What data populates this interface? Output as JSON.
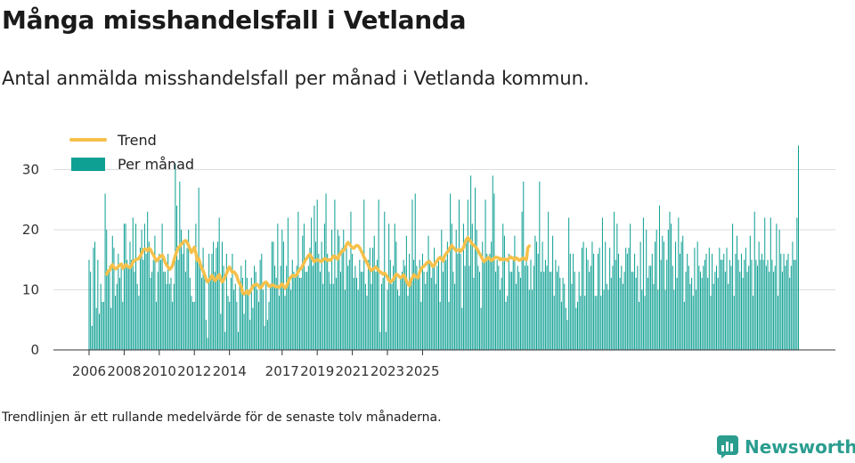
{
  "title": "Många misshandelsfall i Vetlanda",
  "subtitle": "Antal anmälda misshandelsfall per månad i Vetlanda kommun.",
  "footnote": "Trendlinjen är ett rullande medelvärde för de senaste tolv månaderna.",
  "brand": "Newsworthy",
  "colors": {
    "bar": "#0fa094",
    "trend": "#f7c04a",
    "grid": "#dddddd",
    "axis": "#555555",
    "brand": "#2a9d8f"
  },
  "chart_data": {
    "type": "bar",
    "x_start": "2006-01",
    "x_interval": "month",
    "ylim": [
      0,
      35
    ],
    "yticks": [
      0,
      10,
      20,
      30
    ],
    "xticks": [
      "2006",
      "2008",
      "2010",
      "2012",
      "2014",
      "2017",
      "2019",
      "2021",
      "2023",
      "2025"
    ],
    "grid": true,
    "legend_position": "top-left",
    "series": [
      {
        "name": "Per månad",
        "type": "bar",
        "values": [
          15,
          13,
          4,
          17,
          18,
          7,
          15,
          6,
          11,
          8,
          8,
          26,
          20,
          13,
          14,
          7,
          19,
          17,
          9,
          11,
          16,
          12,
          14,
          8,
          21,
          21,
          15,
          14,
          18,
          15,
          22,
          13,
          21,
          11,
          9,
          17,
          20,
          15,
          21,
          16,
          23,
          18,
          12,
          13,
          15,
          19,
          8,
          13,
          16,
          15,
          21,
          13,
          13,
          11,
          16,
          11,
          12,
          8,
          11,
          31,
          24,
          15,
          28,
          20,
          16,
          18,
          13,
          17,
          20,
          12,
          9,
          8,
          8,
          21,
          15,
          27,
          14,
          12,
          17,
          13,
          5,
          2,
          16,
          12,
          16,
          18,
          13,
          17,
          18,
          22,
          6,
          18,
          14,
          3,
          16,
          9,
          8,
          12,
          16,
          10,
          11,
          8,
          3,
          11,
          14,
          12,
          6,
          15,
          12,
          10,
          5,
          12,
          7,
          14,
          13,
          10,
          8,
          15,
          16,
          10,
          4,
          11,
          5,
          8,
          11,
          18,
          18,
          14,
          12,
          21,
          9,
          14,
          20,
          18,
          9,
          14,
          22,
          12,
          10,
          15,
          13,
          12,
          14,
          23,
          12,
          12,
          19,
          21,
          13,
          13,
          14,
          17,
          22,
          14,
          24,
          18,
          25,
          16,
          13,
          18,
          11,
          21,
          26,
          16,
          13,
          11,
          20,
          11,
          25,
          12,
          20,
          19,
          13,
          17,
          20,
          10,
          17,
          14,
          15,
          23,
          16,
          12,
          14,
          12,
          10,
          15,
          13,
          13,
          25,
          11,
          9,
          15,
          17,
          11,
          17,
          19,
          13,
          15,
          25,
          3,
          11,
          12,
          23,
          3,
          10,
          21,
          15,
          11,
          14,
          21,
          18,
          10,
          9,
          12,
          13,
          15,
          14,
          19,
          9,
          16,
          11,
          25,
          15,
          26,
          14,
          12,
          15,
          8,
          16,
          13,
          11,
          13,
          19,
          15,
          12,
          14,
          17,
          11,
          14,
          15,
          8,
          20,
          13,
          15,
          15,
          18,
          8,
          26,
          21,
          13,
          11,
          20,
          16,
          25,
          16,
          7,
          21,
          14,
          18,
          25,
          14,
          29,
          21,
          12,
          27,
          20,
          14,
          13,
          7,
          18,
          15,
          25,
          16,
          15,
          16,
          18,
          29,
          26,
          13,
          15,
          14,
          10,
          12,
          21,
          19,
          8,
          9,
          16,
          13,
          13,
          15,
          19,
          11,
          14,
          13,
          12,
          23,
          28,
          14,
          15,
          14,
          10,
          15,
          10,
          14,
          19,
          18,
          16,
          28,
          13,
          18,
          13,
          15,
          14,
          23,
          13,
          13,
          19,
          9,
          15,
          13,
          14,
          12,
          8,
          12,
          11,
          7,
          5,
          22,
          16,
          11,
          16,
          13,
          7,
          8,
          13,
          9,
          17,
          18,
          9,
          17,
          15,
          13,
          14,
          18,
          16,
          9,
          9,
          16,
          17,
          9,
          22,
          10,
          18,
          11,
          10,
          17,
          12,
          14,
          23,
          15,
          21,
          16,
          12,
          14,
          11,
          13,
          17,
          16,
          17,
          21,
          13,
          13,
          16,
          12,
          14,
          8,
          18,
          10,
          22,
          9,
          20,
          12,
          14,
          14,
          16,
          11,
          18,
          20,
          10,
          24,
          15,
          19,
          18,
          10,
          15,
          20,
          23,
          21,
          14,
          10,
          18,
          12,
          22,
          16,
          18,
          19,
          8,
          13,
          16,
          14,
          11,
          12,
          9,
          17,
          10,
          18,
          14,
          13,
          12,
          14,
          15,
          16,
          12,
          17,
          9,
          16,
          11,
          13,
          14,
          12,
          17,
          15,
          15,
          16,
          13,
          17,
          11,
          15,
          14,
          21,
          9,
          16,
          19,
          15,
          13,
          16,
          12,
          15,
          17,
          13,
          14,
          19,
          15,
          9,
          23,
          15,
          14,
          18,
          15,
          16,
          15,
          22,
          14,
          15,
          13,
          22,
          15,
          13,
          14,
          21,
          9,
          20,
          16,
          13,
          16,
          14,
          15,
          16,
          12,
          14,
          18,
          15,
          15,
          22,
          34
        ]
      },
      {
        "name": "Trend",
        "type": "line",
        "start_index": 12,
        "values": [
          12.6,
          13.1,
          13.2,
          13.8,
          14.2,
          13.7,
          13.5,
          13.6,
          13.9,
          14.1,
          14.3,
          13.6,
          13.8,
          14.2,
          14.0,
          13.8,
          13.7,
          14.1,
          14.6,
          14.9,
          15.0,
          15.1,
          15.2,
          15.6,
          16.1,
          16.6,
          16.8,
          16.7,
          16.5,
          16.9,
          16.7,
          16.2,
          15.8,
          15.3,
          14.8,
          15.0,
          15.4,
          15.6,
          15.8,
          15.3,
          14.6,
          14.1,
          13.8,
          13.4,
          13.6,
          14.0,
          14.9,
          15.7,
          16.4,
          17.0,
          17.2,
          17.6,
          17.8,
          18.1,
          18.2,
          17.9,
          17.4,
          16.8,
          16.2,
          16.6,
          17.1,
          16.1,
          14.9,
          15.2,
          14.3,
          13.6,
          13.2,
          12.5,
          11.8,
          11.3,
          11.6,
          11.9,
          12.4,
          12.0,
          11.5,
          11.7,
          12.2,
          12.5,
          11.8,
          11.3,
          11.6,
          12.2,
          12.7,
          13.4,
          13.8,
          13.3,
          12.9,
          13.0,
          12.7,
          12.3,
          11.5,
          11.0,
          10.6,
          9.5,
          9.3,
          9.6,
          9.8,
          9.3,
          9.7,
          10.1,
          10.6,
          10.8,
          10.9,
          10.9,
          10.6,
          10.3,
          10.5,
          10.9,
          11.2,
          11.3,
          11.0,
          10.6,
          10.6,
          10.8,
          10.8,
          10.6,
          10.5,
          10.5,
          10.4,
          10.7,
          11.0,
          10.6,
          10.3,
          10.6,
          11.2,
          11.8,
          12.1,
          12.4,
          12.3,
          12.3,
          12.5,
          13.0,
          13.4,
          13.6,
          14.0,
          14.5,
          15.0,
          15.3,
          15.7,
          15.9,
          15.5,
          15.0,
          14.7,
          14.9,
          15.0,
          14.9,
          14.8,
          14.7,
          15.0,
          15.2,
          15.1,
          14.9,
          15.0,
          14.9,
          15.2,
          15.6,
          15.6,
          15.3,
          15.1,
          15.8,
          16.1,
          16.5,
          16.5,
          16.9,
          17.5,
          17.9,
          17.6,
          17.3,
          17.0,
          16.9,
          17.2,
          17.4,
          17.3,
          17.0,
          16.5,
          16.0,
          15.4,
          15.0,
          14.5,
          14.0,
          13.5,
          13.2,
          13.4,
          13.6,
          13.8,
          13.5,
          13.2,
          13.0,
          12.8,
          12.6,
          12.8,
          12.5,
          12.1,
          11.6,
          11.3,
          11.5,
          11.7,
          12.2,
          12.6,
          12.5,
          12.2,
          12.0,
          12.2,
          12.5,
          12.1,
          11.5,
          11.0,
          10.7,
          11.6,
          12.0,
          12.5,
          12.3,
          12.1,
          12.0,
          12.9,
          13.5,
          13.8,
          13.9,
          14.2,
          14.5,
          14.7,
          14.6,
          14.3,
          13.9,
          14.0,
          14.6,
          14.8,
          15.2,
          15.4,
          15.1,
          14.8,
          15.6,
          16.0,
          16.3,
          16.6,
          17.1,
          17.4,
          17.0,
          16.8,
          16.5,
          16.6,
          16.7,
          16.4,
          16.7,
          17.0,
          17.8,
          18.4,
          18.7,
          18.3,
          18.0,
          17.6,
          17.4,
          17.2,
          16.9,
          16.5,
          16.0,
          15.6,
          15.1,
          14.7,
          14.9,
          15.2,
          15.4,
          15.1,
          14.9,
          15.0,
          15.3,
          15.4,
          15.4,
          15.3,
          15.0,
          15.2,
          15.0,
          15.1,
          15.1,
          14.9,
          15.2,
          15.5,
          15.3,
          15.3,
          15.0,
          15.3,
          15.2,
          14.9,
          15.0,
          15.2,
          15.3,
          15.1,
          15.0,
          17.0,
          17.3
        ]
      }
    ]
  }
}
